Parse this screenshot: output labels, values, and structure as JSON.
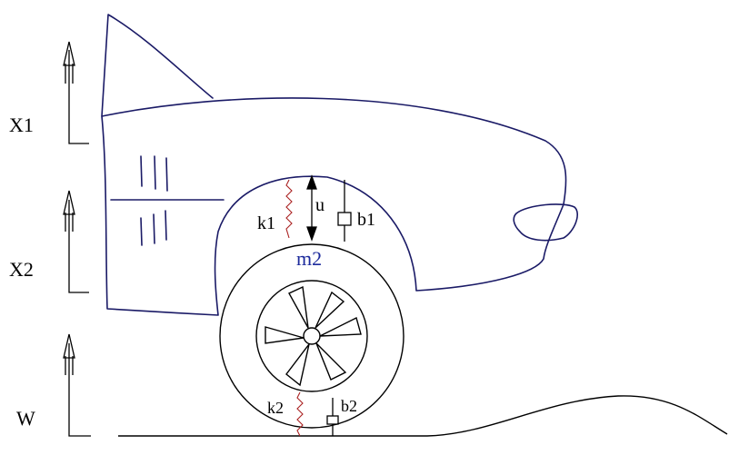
{
  "labels": {
    "x1": "X1",
    "x2": "X2",
    "w": "W",
    "k1": "k1",
    "u": "u",
    "b1": "b1",
    "m2": "m2",
    "k2": "k2",
    "b2": "b2"
  },
  "colors": {
    "body_line": "#1a1a66",
    "spring": "#aa2222",
    "mass_label": "#1c2a9c",
    "ink": "#000000"
  }
}
